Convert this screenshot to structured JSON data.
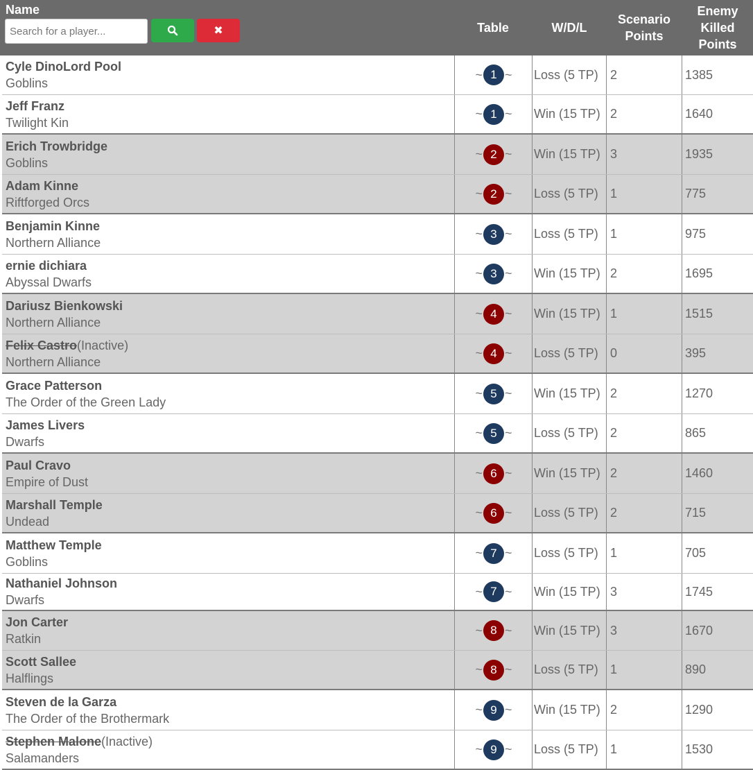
{
  "header": {
    "name_label": "Name",
    "search_placeholder": "Search for a player...",
    "search_icon": "search-icon",
    "clear_icon": "close-icon",
    "clear_glyph": "✖",
    "table_label": "Table",
    "wdl_label": "W/D/L",
    "scenario_label_1": "Scenario",
    "scenario_label_2": "Points",
    "enemy_label_1": "Enemy",
    "enemy_label_2": "Killed",
    "enemy_label_3": "Points"
  },
  "colors": {
    "header_bg": "#6b6b6b",
    "search_button": "#2eaa4a",
    "clear_button": "#dd2b38",
    "table_badge_blue": "#1e3a5f",
    "table_badge_red": "#8b0000",
    "grey_row": "#d3d3d3"
  },
  "rows": [
    {
      "name": "Cyle DinoLord Pool",
      "inactive": "",
      "faction": "Goblins",
      "table": "1",
      "wdl": "Loss (5 TP)",
      "scenario": "2",
      "enemy_killed": "1385"
    },
    {
      "name": "Jeff Franz",
      "inactive": "",
      "faction": "Twilight Kin",
      "table": "1",
      "wdl": "Win (15 TP)",
      "scenario": "2",
      "enemy_killed": "1640"
    },
    {
      "name": "Erich Trowbridge",
      "inactive": "",
      "faction": "Goblins",
      "table": "2",
      "wdl": "Win (15 TP)",
      "scenario": "3",
      "enemy_killed": "1935"
    },
    {
      "name": "Adam Kinne",
      "inactive": "",
      "faction": "Riftforged Orcs",
      "table": "2",
      "wdl": "Loss (5 TP)",
      "scenario": "1",
      "enemy_killed": "775"
    },
    {
      "name": "Benjamin Kinne",
      "inactive": "",
      "faction": "Northern Alliance",
      "table": "3",
      "wdl": "Loss (5 TP)",
      "scenario": "1",
      "enemy_killed": "975"
    },
    {
      "name": "ernie dichiara",
      "inactive": "",
      "faction": "Abyssal Dwarfs",
      "table": "3",
      "wdl": "Win (15 TP)",
      "scenario": "2",
      "enemy_killed": "1695"
    },
    {
      "name": "Dariusz Bienkowski",
      "inactive": "",
      "faction": "Northern Alliance",
      "table": "4",
      "wdl": "Win (15 TP)",
      "scenario": "1",
      "enemy_killed": "1515"
    },
    {
      "name": "Felix Castro",
      "inactive": "(Inactive)",
      "faction": "Northern Alliance",
      "table": "4",
      "wdl": "Loss (5 TP)",
      "scenario": "0",
      "enemy_killed": "395"
    },
    {
      "name": "Grace Patterson",
      "inactive": "",
      "faction": "The Order of the Green Lady",
      "table": "5",
      "wdl": "Win (15 TP)",
      "scenario": "2",
      "enemy_killed": "1270"
    },
    {
      "name": "James Livers",
      "inactive": "",
      "faction": "Dwarfs",
      "table": "5",
      "wdl": "Loss (5 TP)",
      "scenario": "2",
      "enemy_killed": "865"
    },
    {
      "name": "Paul Cravo",
      "inactive": "",
      "faction": "Empire of Dust",
      "table": "6",
      "wdl": "Win (15 TP)",
      "scenario": "2",
      "enemy_killed": "1460"
    },
    {
      "name": "Marshall Temple",
      "inactive": "",
      "faction": "Undead",
      "table": "6",
      "wdl": "Loss (5 TP)",
      "scenario": "2",
      "enemy_killed": "715"
    },
    {
      "name": "Matthew Temple",
      "inactive": "",
      "faction": "Goblins",
      "table": "7",
      "wdl": "Loss (5 TP)",
      "scenario": "1",
      "enemy_killed": "705"
    },
    {
      "name": "Nathaniel Johnson",
      "inactive": "",
      "faction": "Dwarfs",
      "table": "7",
      "wdl": "Win (15 TP)",
      "scenario": "3",
      "enemy_killed": "1745"
    },
    {
      "name": "Jon Carter",
      "inactive": "",
      "faction": "Ratkin",
      "table": "8",
      "wdl": "Win (15 TP)",
      "scenario": "3",
      "enemy_killed": "1670"
    },
    {
      "name": "Scott Sallee",
      "inactive": "",
      "faction": "Halflings",
      "table": "8",
      "wdl": "Loss (5 TP)",
      "scenario": "1",
      "enemy_killed": "890"
    },
    {
      "name": "Steven de la Garza",
      "inactive": "",
      "faction": "The Order of the Brothermark",
      "table": "9",
      "wdl": "Win (15 TP)",
      "scenario": "2",
      "enemy_killed": "1290"
    },
    {
      "name": "Stephen Malone",
      "inactive": "(Inactive)",
      "faction": "Salamanders",
      "table": "9",
      "wdl": "Loss (5 TP)",
      "scenario": "1",
      "enemy_killed": "1530"
    }
  ]
}
